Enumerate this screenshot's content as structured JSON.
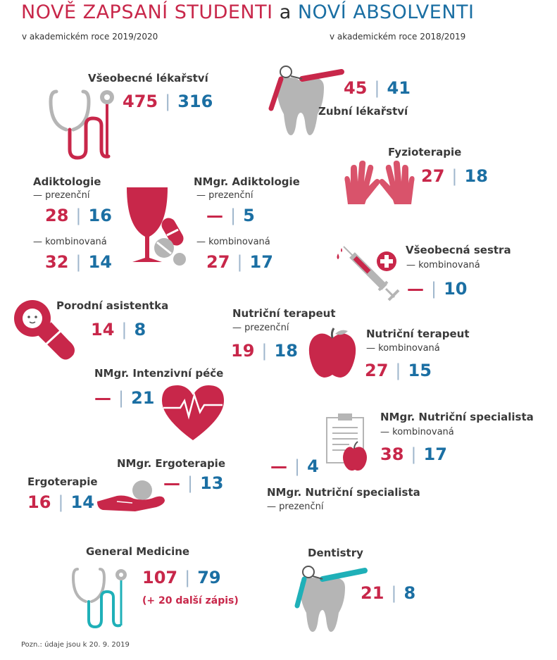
{
  "header": {
    "title_part1": "NOVĚ ZAPSANÍ STUDENTI",
    "title_conj": "a",
    "title_part2": "NOVÍ ABSOLVENTI",
    "subtitle_left": "v akademickém roce 2019/2020",
    "subtitle_right": "v akademickém roce 2018/2019"
  },
  "colors": {
    "enrolled": "#c8274a",
    "graduates": "#1b6fa3",
    "separator": "#9fb6cc",
    "icon_gray": "#b5b5b5",
    "icon_teal": "#1fb0b8"
  },
  "separator": "|",
  "programs": {
    "vseobecne": {
      "label": "Všeobecné lékařství",
      "enrolled": "475",
      "graduates": "316",
      "icon": "stethoscope-icon"
    },
    "zubni": {
      "label": "Zubní lékařství",
      "enrolled": "45",
      "graduates": "41",
      "icon": "tooth-icon"
    },
    "fyzio": {
      "label": "Fyzioterapie",
      "enrolled": "27",
      "graduates": "18",
      "icon": "gloves-icon"
    },
    "adikt": {
      "label": "Adiktologie",
      "mode1": "— prezenční",
      "enrolled1": "28",
      "graduates1": "16",
      "mode2": "— kombinovaná",
      "enrolled2": "32",
      "graduates2": "14",
      "icon": "wine-glass-icon"
    },
    "nmgr_adikt": {
      "label": "NMgr. Adiktologie",
      "mode1": "— prezenční",
      "enrolled1": "—",
      "graduates1": "5",
      "mode2": "— kombinovaná",
      "enrolled2": "27",
      "graduates2": "17",
      "icon": "pills-icon"
    },
    "sestra": {
      "label": "Všeobecná sestra",
      "mode": "— kombinovaná",
      "enrolled": "—",
      "graduates": "10",
      "icon": "syringe-icon"
    },
    "porodni": {
      "label": "Porodní asistentka",
      "enrolled": "14",
      "graduates": "8",
      "icon": "baby-icon"
    },
    "nutri_prez": {
      "label": "Nutriční terapeut",
      "mode": "— prezenční",
      "enrolled": "19",
      "graduates": "18",
      "icon": "apple-icon"
    },
    "nutri_komb": {
      "label": "Nutriční terapeut",
      "mode": "— kombinovaná",
      "enrolled": "27",
      "graduates": "15"
    },
    "intenzivni": {
      "label": "NMgr. Intenzivní péče",
      "enrolled": "—",
      "graduates": "21",
      "icon": "heart-icon"
    },
    "nutri_spec_komb": {
      "label": "NMgr. Nutriční specialista",
      "mode": "— kombinovaná",
      "enrolled": "38",
      "graduates": "17",
      "icon": "clipboard-icon"
    },
    "nutri_spec_prez": {
      "label": "NMgr. Nutriční specialista",
      "mode": "— prezenční",
      "enrolled": "—",
      "graduates": "4"
    },
    "nmgr_ergo": {
      "label": "NMgr. Ergoterapie",
      "enrolled": "—",
      "graduates": "13",
      "icon": "hand-ball-icon"
    },
    "ergo": {
      "label": "Ergoterapie",
      "enrolled": "16",
      "graduates": "14"
    },
    "general": {
      "label": "General Medicine",
      "enrolled": "107",
      "graduates": "79",
      "extra": "(+ 20 další zápis)",
      "icon": "stethoscope-icon"
    },
    "dentistry": {
      "label": "Dentistry",
      "enrolled": "21",
      "graduates": "8",
      "icon": "tooth-icon"
    }
  },
  "footer": {
    "note": "Pozn.: údaje jsou k 20. 9. 2019"
  }
}
